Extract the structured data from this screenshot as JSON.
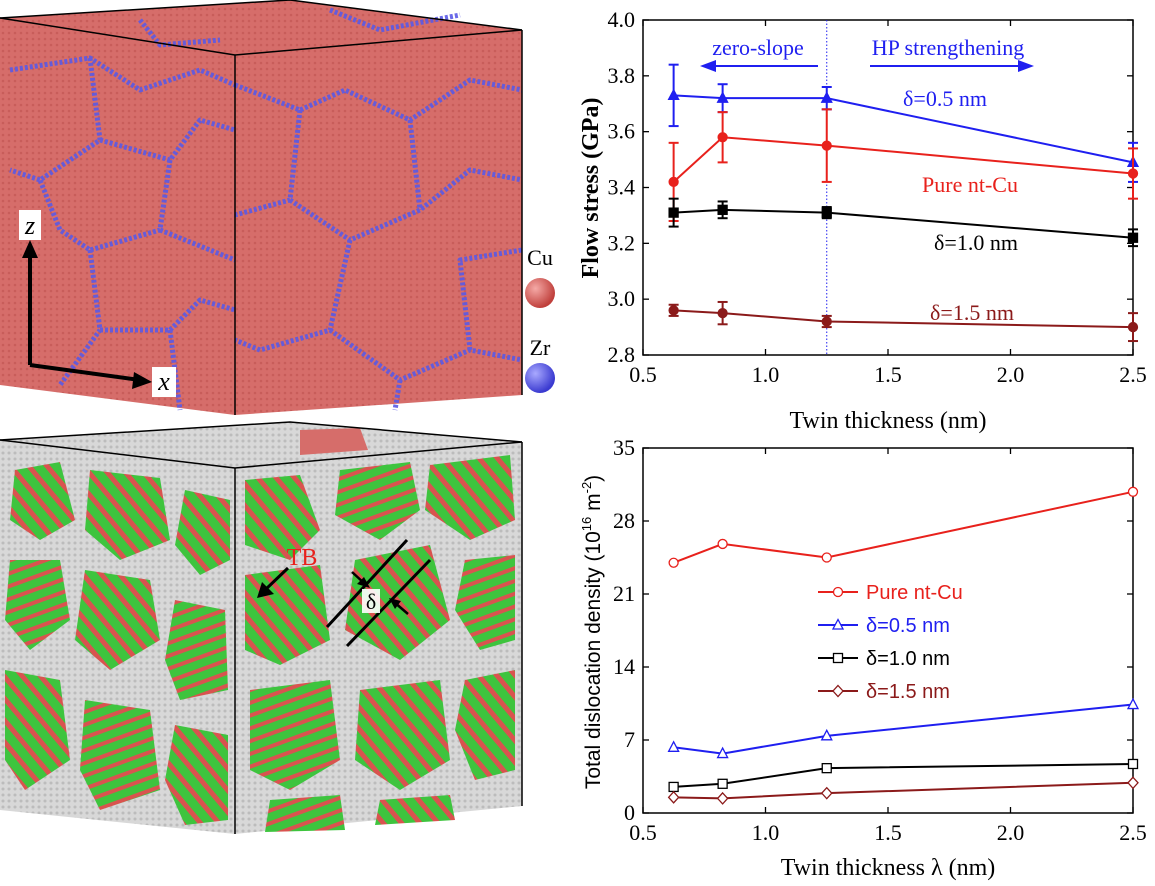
{
  "left_panels": {
    "top": {
      "axis_z": "z",
      "axis_x": "x",
      "legend": [
        {
          "label": "Cu",
          "color": "#d9534f"
        },
        {
          "label": "Zr",
          "color": "#5b5bf0"
        }
      ]
    },
    "bottom": {
      "tb_label": "TB",
      "delta_label": "δ"
    }
  },
  "colors": {
    "cu": "#d66d6a",
    "zr": "#5a5ae6",
    "gb_gray": "#d4d4d4",
    "green": "#3ec43e",
    "red_series": "#e8211c",
    "blue_series": "#1f1ff0",
    "black_series": "#000000",
    "darkred_series": "#8b1a1a"
  },
  "chart_data": [
    {
      "type": "line",
      "xlabel": "Twin thickness (nm)",
      "ylabel": "Flow stress (GPa)",
      "xlim": [
        0.5,
        2.5
      ],
      "ylim": [
        2.8,
        4.0
      ],
      "xticks": [
        "0.5",
        "1.0",
        "1.5",
        "2.0",
        "2.5"
      ],
      "yticks": [
        "2.8",
        "3.0",
        "3.2",
        "3.4",
        "3.6",
        "3.8",
        "4.0"
      ],
      "x": [
        0.625,
        0.825,
        1.25,
        2.5
      ],
      "series": [
        {
          "name": "δ=0.5 nm",
          "color": "#1f1ff0",
          "marker": "triangle-filled",
          "values": [
            3.73,
            3.72,
            3.72,
            3.49
          ],
          "err": [
            0.11,
            0.05,
            0.04,
            0.07
          ]
        },
        {
          "name": "Pure nt-Cu",
          "color": "#e8211c",
          "marker": "circle-filled",
          "values": [
            3.42,
            3.58,
            3.55,
            3.45
          ],
          "err": [
            0.14,
            0.09,
            0.13,
            0.09
          ]
        },
        {
          "name": "δ=1.0 nm",
          "color": "#000000",
          "marker": "square-filled",
          "values": [
            3.31,
            3.32,
            3.31,
            3.22
          ],
          "err": [
            0.05,
            0.03,
            0.02,
            0.03
          ]
        },
        {
          "name": "δ=1.5 nm",
          "color": "#8b1a1a",
          "marker": "circle-filled",
          "values": [
            2.96,
            2.95,
            2.92,
            2.9
          ],
          "err": [
            0.02,
            0.04,
            0.02,
            0.05
          ]
        }
      ],
      "annotations": {
        "left_text": "zero-slope",
        "right_text": "HP strengthening",
        "divider_x": 1.25
      }
    },
    {
      "type": "line",
      "xlabel": "Twin thickness λ (nm)",
      "ylabel": "Total dislocation density (10",
      "ylabel_sup": "16",
      "ylabel_mid": " m",
      "ylabel_sup2": "-2",
      "ylabel_end": ")",
      "xlim": [
        0.5,
        2.5
      ],
      "ylim": [
        0,
        35
      ],
      "xticks": [
        "0.5",
        "1.0",
        "1.5",
        "2.0",
        "2.5"
      ],
      "yticks": [
        "0",
        "7",
        "14",
        "21",
        "28",
        "35"
      ],
      "x": [
        0.625,
        0.825,
        1.25,
        2.5
      ],
      "series": [
        {
          "name": "Pure nt-Cu",
          "color": "#e8211c",
          "marker": "circle-open",
          "values": [
            24.0,
            25.8,
            24.5,
            30.8
          ]
        },
        {
          "name": "δ=0.5 nm",
          "color": "#1f1ff0",
          "marker": "triangle-open",
          "values": [
            6.3,
            5.7,
            7.4,
            10.4
          ]
        },
        {
          "name": "δ=1.0 nm",
          "color": "#000000",
          "marker": "square-open",
          "values": [
            2.5,
            2.8,
            4.3,
            4.7
          ]
        },
        {
          "name": "δ=1.5 nm",
          "color": "#8b1a1a",
          "marker": "diamond-open",
          "values": [
            1.5,
            1.4,
            1.9,
            2.9
          ]
        }
      ]
    }
  ]
}
